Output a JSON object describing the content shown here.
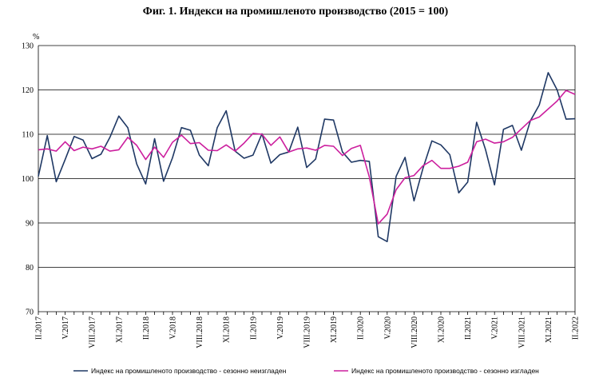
{
  "chart_data": {
    "type": "line",
    "title": "Фиг. 1. Индекси на промишленото производство (2015 = 100)",
    "ylabel": "%",
    "ylim": [
      70,
      130
    ],
    "yticks": [
      70,
      80,
      90,
      100,
      110,
      120,
      130
    ],
    "grid": "horizontal",
    "x_labels": [
      "II.2017",
      "V.2017",
      "VIII.2017",
      "XI.2017",
      "II.2018",
      "V.2018",
      "VIII.2018",
      "XI.2018",
      "II.2019",
      "V.2019",
      "VIII.2019",
      "XI.2019",
      "II.2020",
      "V.2020",
      "VIII.2020",
      "XI.2020",
      "II.2021",
      "V.2021",
      "VIII.2021",
      "XI.2021",
      "II.2022"
    ],
    "x_label_every": 3,
    "legend_position": "bottom",
    "series": [
      {
        "name": "Индекс на промишленото производство - сезонно  неизгладен",
        "color": "#1f3864",
        "values": [
          100.5,
          109.7,
          99.3,
          104.3,
          109.5,
          108.7,
          104.5,
          105.5,
          109.3,
          114.1,
          111.5,
          103.3,
          98.8,
          109.0,
          99.4,
          104.7,
          111.5,
          110.9,
          105.3,
          102.9,
          111.5,
          115.3,
          106.2,
          104.6,
          105.3,
          110.1,
          103.5,
          105.4,
          106.0,
          111.6,
          102.5,
          104.4,
          113.4,
          113.2,
          106.0,
          103.7,
          104.1,
          103.9,
          86.9,
          85.8,
          100.5,
          104.8,
          95.0,
          102.3,
          108.5,
          107.6,
          105.4,
          96.8,
          99.2,
          112.7,
          106.5,
          98.6,
          111.1,
          112.0,
          106.4,
          113.0,
          116.6,
          123.9,
          120.0,
          113.4,
          113.5
        ]
      },
      {
        "name": "Индекс на промишленото производство - сезонно изгладен",
        "color": "#cc1f9e",
        "values": [
          106.5,
          106.7,
          106.2,
          108.3,
          106.3,
          107.1,
          106.7,
          107.3,
          106.2,
          106.5,
          109.3,
          107.5,
          104.3,
          107.1,
          104.8,
          108.2,
          109.8,
          107.9,
          108.1,
          106.4,
          106.3,
          107.6,
          106.2,
          108.0,
          110.2,
          110.0,
          107.5,
          109.4,
          106.0,
          106.7,
          106.9,
          106.4,
          107.5,
          107.3,
          105.2,
          106.8,
          107.5,
          100.4,
          89.8,
          92.0,
          97.5,
          100.2,
          100.7,
          102.9,
          104.1,
          102.3,
          102.3,
          102.8,
          103.7,
          108.3,
          108.9,
          108.0,
          108.3,
          109.3,
          111.2,
          113.1,
          113.9,
          115.7,
          117.5,
          119.9,
          119.0
        ]
      }
    ]
  }
}
